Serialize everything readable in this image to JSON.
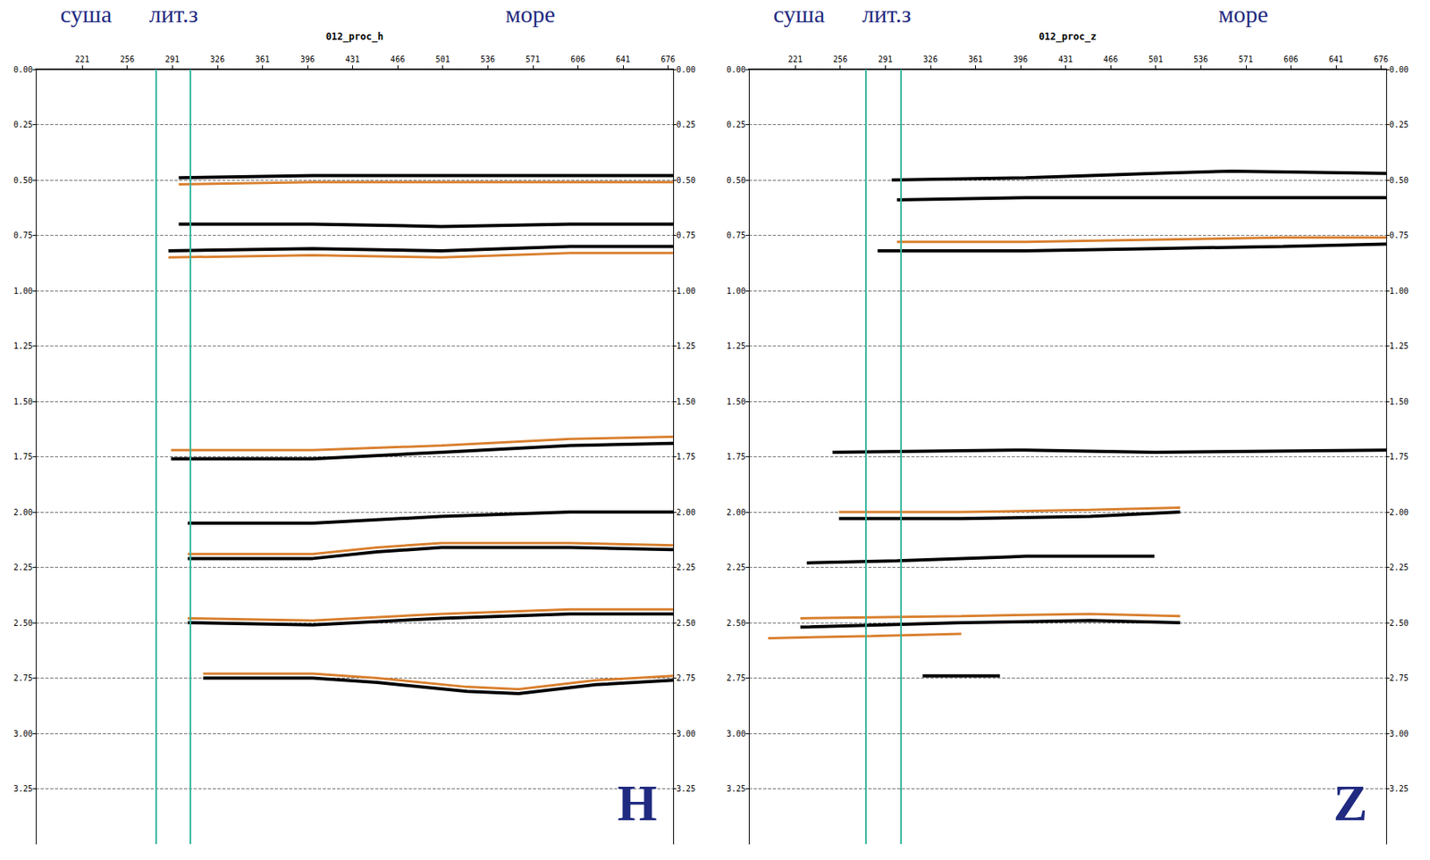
{
  "chart_data": [
    {
      "type": "line",
      "title": "012_proc_h",
      "label": "H",
      "annotations": [
        {
          "text": "суша",
          "x": 224
        },
        {
          "text": "лит.з",
          "x": 292
        },
        {
          "text": "море",
          "x": 569
        }
      ],
      "boundaries": [
        278,
        305
      ],
      "xlim": [
        185,
        680
      ],
      "xticks": [
        221,
        256,
        291,
        326,
        361,
        396,
        431,
        466,
        501,
        536,
        571,
        606,
        641,
        676
      ],
      "ylim": [
        3.5,
        0
      ],
      "yticks": [
        {
          "value": 0,
          "label": "0.00"
        },
        0.25,
        {
          "value": 0.5,
          "label": "0.50"
        },
        0.75,
        {
          "value": 1,
          "label": "1.00"
        },
        1.25,
        {
          "value": 1.5,
          "label": "1.50"
        },
        1.75,
        {
          "value": 2,
          "label": "2.00"
        },
        2.25,
        {
          "value": 2.5,
          "label": "2.50"
        },
        2.75,
        {
          "value": 3,
          "label": "3.00"
        },
        3.25
      ],
      "grid": true,
      "series": [
        {
          "color": "#d97f2e",
          "x": [
            296,
            400,
            500,
            600,
            680
          ],
          "values": [
            0.52,
            0.51,
            0.51,
            0.51,
            0.51
          ]
        },
        {
          "color": "#000000",
          "x": [
            296,
            400,
            500,
            600,
            680
          ],
          "values": [
            0.49,
            0.48,
            0.48,
            0.48,
            0.48
          ]
        },
        {
          "color": "#000000",
          "x": [
            296,
            400,
            500,
            600,
            680
          ],
          "values": [
            0.7,
            0.7,
            0.71,
            0.7,
            0.7
          ]
        },
        {
          "color": "#d97f2e",
          "x": [
            288,
            400,
            500,
            600,
            680
          ],
          "values": [
            0.85,
            0.84,
            0.85,
            0.83,
            0.83
          ]
        },
        {
          "color": "#000000",
          "x": [
            288,
            400,
            500,
            600,
            680
          ],
          "values": [
            0.82,
            0.81,
            0.82,
            0.8,
            0.8
          ]
        },
        {
          "color": "#d97f2e",
          "x": [
            290,
            400,
            500,
            600,
            680
          ],
          "values": [
            1.72,
            1.72,
            1.7,
            1.67,
            1.66
          ]
        },
        {
          "color": "#000000",
          "x": [
            290,
            400,
            500,
            600,
            680
          ],
          "values": [
            1.76,
            1.76,
            1.73,
            1.7,
            1.69
          ]
        },
        {
          "color": "#000000",
          "x": [
            303,
            400,
            500,
            600,
            680
          ],
          "values": [
            2.05,
            2.05,
            2.02,
            2.0,
            2.0
          ]
        },
        {
          "color": "#d97f2e",
          "x": [
            303,
            400,
            450,
            500,
            600,
            680
          ],
          "values": [
            2.19,
            2.19,
            2.16,
            2.14,
            2.14,
            2.15
          ]
        },
        {
          "color": "#000000",
          "x": [
            303,
            400,
            450,
            500,
            600,
            680
          ],
          "values": [
            2.21,
            2.21,
            2.18,
            2.16,
            2.16,
            2.17
          ]
        },
        {
          "color": "#d97f2e",
          "x": [
            303,
            400,
            500,
            600,
            680
          ],
          "values": [
            2.48,
            2.49,
            2.46,
            2.44,
            2.44
          ]
        },
        {
          "color": "#000000",
          "x": [
            303,
            400,
            500,
            600,
            680
          ],
          "values": [
            2.5,
            2.51,
            2.48,
            2.46,
            2.46
          ]
        },
        {
          "color": "#d97f2e",
          "x": [
            315,
            400,
            450,
            520,
            560,
            620,
            680
          ],
          "values": [
            2.73,
            2.73,
            2.75,
            2.79,
            2.8,
            2.76,
            2.74
          ]
        },
        {
          "color": "#000000",
          "x": [
            315,
            400,
            450,
            520,
            560,
            620,
            680
          ],
          "values": [
            2.75,
            2.75,
            2.77,
            2.81,
            2.82,
            2.78,
            2.76
          ]
        }
      ]
    },
    {
      "type": "line",
      "title": "012_proc_z",
      "label": "Z",
      "annotations": [
        {
          "text": "суша",
          "x": 224
        },
        {
          "text": "лит.з",
          "x": 292
        },
        {
          "text": "море",
          "x": 569
        }
      ],
      "boundaries": [
        276,
        303
      ],
      "xlim": [
        185,
        680
      ],
      "xticks": [
        221,
        256,
        291,
        326,
        361,
        396,
        431,
        466,
        501,
        536,
        571,
        606,
        641,
        676
      ],
      "ylim": [
        3.5,
        0
      ],
      "yticks": [
        {
          "value": 0,
          "label": "0.00"
        },
        0.25,
        {
          "value": 0.5,
          "label": "0.50"
        },
        0.75,
        {
          "value": 1,
          "label": "1.00"
        },
        1.25,
        {
          "value": 1.5,
          "label": "1.50"
        },
        1.75,
        {
          "value": 2,
          "label": "2.00"
        },
        2.25,
        {
          "value": 2.5,
          "label": "2.50"
        },
        2.75,
        {
          "value": 3,
          "label": "3.00"
        },
        3.25
      ],
      "grid": true,
      "series": [
        {
          "color": "#000000",
          "x": [
            296,
            400,
            500,
            560,
            680
          ],
          "values": [
            0.5,
            0.49,
            0.47,
            0.46,
            0.47
          ]
        },
        {
          "color": "#000000",
          "x": [
            300,
            400,
            500,
            600,
            680
          ],
          "values": [
            0.59,
            0.58,
            0.58,
            0.58,
            0.58
          ]
        },
        {
          "color": "#d97f2e",
          "x": [
            300,
            400,
            500,
            600,
            680
          ],
          "values": [
            0.78,
            0.78,
            0.77,
            0.76,
            0.76
          ]
        },
        {
          "color": "#000000",
          "x": [
            285,
            400,
            500,
            600,
            680
          ],
          "values": [
            0.82,
            0.82,
            0.81,
            0.8,
            0.79
          ]
        },
        {
          "color": "#000000",
          "x": [
            250,
            400,
            500,
            680
          ],
          "values": [
            1.73,
            1.72,
            1.73,
            1.72
          ]
        },
        {
          "color": "#d97f2e",
          "x": [
            255,
            350,
            450,
            520
          ],
          "values": [
            2.0,
            2.0,
            1.99,
            1.98
          ]
        },
        {
          "color": "#000000",
          "x": [
            255,
            350,
            450,
            520
          ],
          "values": [
            2.03,
            2.03,
            2.02,
            2.0
          ]
        },
        {
          "color": "#000000",
          "x": [
            230,
            300,
            400,
            500
          ],
          "values": [
            2.23,
            2.22,
            2.2,
            2.2
          ]
        },
        {
          "color": "#d97f2e",
          "x": [
            225,
            350,
            450,
            520
          ],
          "values": [
            2.48,
            2.47,
            2.46,
            2.47
          ]
        },
        {
          "color": "#000000",
          "x": [
            225,
            350,
            450,
            520
          ],
          "values": [
            2.52,
            2.5,
            2.49,
            2.5
          ]
        },
        {
          "color": "#d97f2e",
          "x": [
            200,
            280,
            350
          ],
          "values": [
            2.57,
            2.56,
            2.55
          ]
        },
        {
          "color": "#000000",
          "x": [
            320,
            380
          ],
          "values": [
            2.74,
            2.74
          ]
        }
      ]
    }
  ]
}
